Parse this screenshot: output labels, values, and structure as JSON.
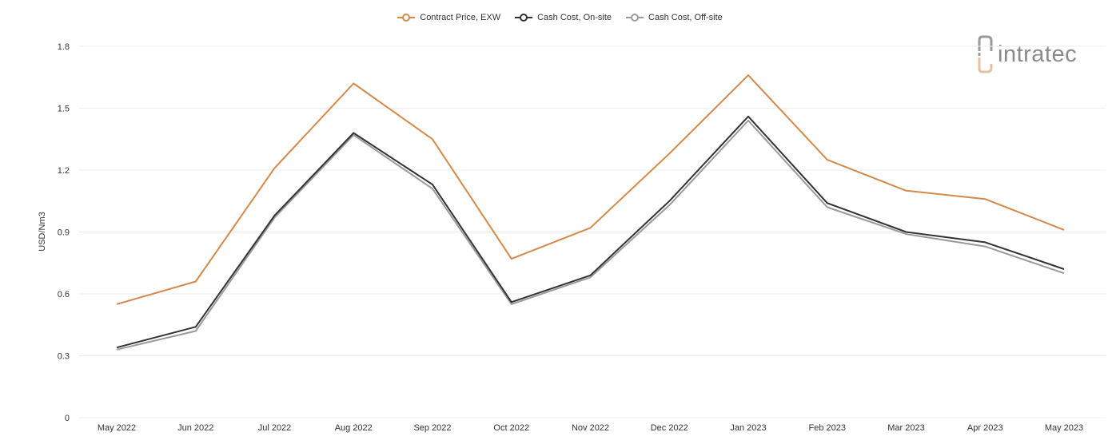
{
  "brand": {
    "logo_text": "intratec",
    "logo_icon": "intratec-logo-icon"
  },
  "chart_data": {
    "type": "line",
    "title": "",
    "xlabel": "",
    "ylabel": "USD/Nm3",
    "ylim": [
      0,
      1.8
    ],
    "yticks": [
      "0",
      "0.3",
      "0.6",
      "0.9",
      "1.2",
      "1.5",
      "1.8"
    ],
    "grid": true,
    "legend_position": "top-center",
    "categories": [
      "May 2022",
      "Jun 2022",
      "Jul 2022",
      "Aug 2022",
      "Sep 2022",
      "Oct 2022",
      "Nov 2022",
      "Dec 2022",
      "Jan 2023",
      "Feb 2023",
      "Mar 2023",
      "Apr 2023",
      "May 2023"
    ],
    "series": [
      {
        "name": "Contract Price, EXW",
        "color": "#d4894a",
        "values": [
          0.55,
          0.66,
          1.21,
          1.62,
          1.35,
          0.77,
          0.92,
          1.28,
          1.66,
          1.25,
          1.1,
          1.06,
          0.91
        ]
      },
      {
        "name": "Cash Cost, On-site",
        "color": "#333333",
        "values": [
          0.34,
          0.44,
          0.98,
          1.38,
          1.13,
          0.56,
          0.69,
          1.05,
          1.46,
          1.04,
          0.9,
          0.85,
          0.72
        ]
      },
      {
        "name": "Cash Cost, Off-site",
        "color": "#9a9a9a",
        "values": [
          0.33,
          0.42,
          0.97,
          1.37,
          1.11,
          0.55,
          0.68,
          1.03,
          1.44,
          1.02,
          0.89,
          0.83,
          0.7
        ]
      }
    ]
  }
}
